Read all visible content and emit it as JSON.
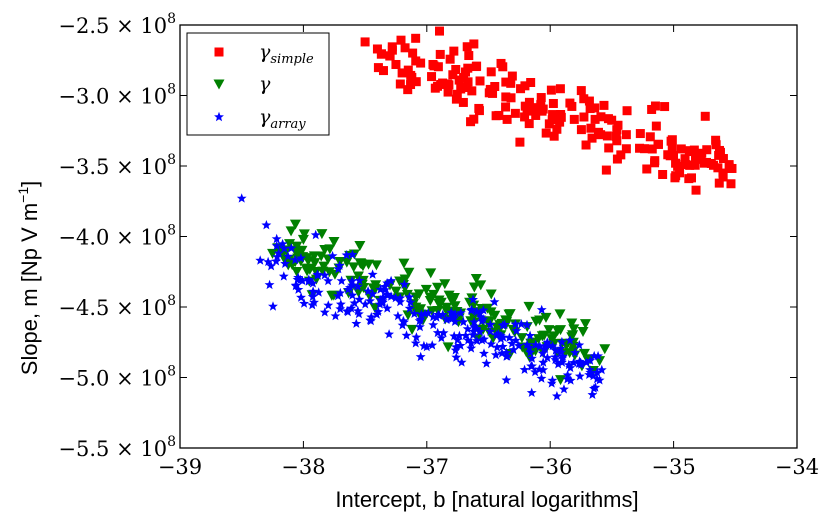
{
  "chart_data": {
    "type": "scatter",
    "title": "",
    "xlabel": "Intercept, b [natural logarithms]",
    "ylabel": "Slope, m [Np V m",
    "ylabel_sup": "−1",
    "ylabel_end": "]",
    "xlim": [
      -39,
      -34
    ],
    "ylim": [
      -550000000.0,
      -250000000.0
    ],
    "grid": false,
    "legend_position": "top-left",
    "x_ticks": [
      -39,
      -38,
      -37,
      -36,
      -35,
      -34
    ],
    "x_tick_labels": [
      "−39",
      "−38",
      "−37",
      "−36",
      "−35",
      "−34"
    ],
    "y_ticks": [
      -250000000.0,
      -300000000.0,
      -350000000.0,
      -400000000.0,
      -450000000.0,
      -500000000.0,
      -550000000.0
    ],
    "y_tick_labels": [
      {
        "mant": "−2.5 × 10",
        "exp": "8"
      },
      {
        "mant": "−3.0 × 10",
        "exp": "8"
      },
      {
        "mant": "−3.5 × 10",
        "exp": "8"
      },
      {
        "mant": "−4.0 × 10",
        "exp": "8"
      },
      {
        "mant": "−4.5 × 10",
        "exp": "8"
      },
      {
        "mant": "−5.0 × 10",
        "exp": "8"
      },
      {
        "mant": "−5.5 × 10",
        "exp": "8"
      }
    ],
    "series": [
      {
        "name": "gamma_simple",
        "legend_base": "γ",
        "legend_sub": "simple",
        "marker": "square",
        "color": "#ff0000",
        "generator": {
          "x_start": -37.5,
          "x_end": -34.55,
          "y_start": -265000000.0,
          "y_end": -352000000.0,
          "count": 190,
          "spread": 13000000.0,
          "seed": 11
        },
        "extra_points": [
          {
            "x": -37.5,
            "y": -262000000.0
          },
          {
            "x": -37.4,
            "y": -267000000.0
          },
          {
            "x": -37.3,
            "y": -272000000.0
          },
          {
            "x": -37.25,
            "y": -278000000.0
          },
          {
            "x": -37.2,
            "y": -284000000.0
          },
          {
            "x": -37.15,
            "y": -282000000.0
          },
          {
            "x": -37.05,
            "y": -277000000.0
          },
          {
            "x": -36.95,
            "y": -278000000.0
          },
          {
            "x": -34.6,
            "y": -355000000.0
          },
          {
            "x": -34.55,
            "y": -349000000.0
          },
          {
            "x": -34.75,
            "y": -348000000.0
          },
          {
            "x": -34.9,
            "y": -349000000.0
          }
        ]
      },
      {
        "name": "gamma",
        "legend_base": "γ",
        "legend_sub": "",
        "marker": "triangle-down",
        "color": "#008000",
        "generator": {
          "x_start": -38.2,
          "x_end": -35.6,
          "y_start": -410000000.0,
          "y_end": -486000000.0,
          "count": 210,
          "spread": 9000000.0,
          "seed": 23
        },
        "extra_points": [
          {
            "x": -38.1,
            "y": -396000000.0
          },
          {
            "x": -38.0,
            "y": -402000000.0
          },
          {
            "x": -37.85,
            "y": -398000000.0
          },
          {
            "x": -38.25,
            "y": -412000000.0
          },
          {
            "x": -35.6,
            "y": -488000000.0
          },
          {
            "x": -35.65,
            "y": -495000000.0
          },
          {
            "x": -35.8,
            "y": -484000000.0
          }
        ]
      },
      {
        "name": "gamma_array",
        "legend_base": "γ",
        "legend_sub": "array",
        "marker": "star",
        "color": "#0000ff",
        "generator": {
          "x_start": -38.3,
          "x_end": -35.6,
          "y_start": -420000000.0,
          "y_end": -500000000.0,
          "count": 260,
          "spread": 11000000.0,
          "seed": 37
        },
        "extra_points": [
          {
            "x": -38.5,
            "y": -373000000.0
          },
          {
            "x": -38.3,
            "y": -392000000.0
          },
          {
            "x": -37.9,
            "y": -399000000.0
          },
          {
            "x": -38.35,
            "y": -417000000.0
          },
          {
            "x": -38.2,
            "y": -412000000.0
          },
          {
            "x": -35.6,
            "y": -502000000.0
          },
          {
            "x": -35.65,
            "y": -499000000.0
          }
        ]
      }
    ]
  }
}
